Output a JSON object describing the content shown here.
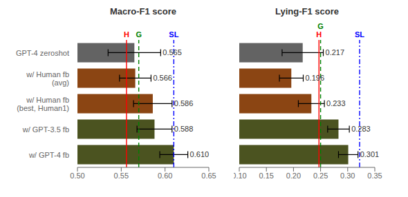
{
  "chart_data": [
    {
      "type": "bar",
      "orientation": "horizontal",
      "title": "Macro-F1 score",
      "categories": [
        "GPT-4 zeroshot",
        "w/ Human fb\n(avg)",
        "w/ Human fb\n(best, Human1)",
        "w/ GPT-3.5 fb",
        "w/ GPT-4 fb"
      ],
      "values": [
        0.565,
        0.566,
        0.586,
        0.588,
        0.61
      ],
      "errors": [
        0.03,
        0.018,
        0.022,
        0.02,
        0.016
      ],
      "value_labels": [
        "0.565",
        "0.566",
        "0.586",
        "0.588",
        "0.610"
      ],
      "data_labels": true,
      "colors": [
        "#636363",
        "#8B4513",
        "#8B4513",
        "#4B5320",
        "#4B5320"
      ],
      "annotations": [
        {
          "type": "vline",
          "x": 0.556,
          "label": "H",
          "color": "red",
          "line_style": "solid"
        },
        {
          "type": "vline",
          "x": 0.57,
          "label": "G",
          "color": "green",
          "line_style": "dashed"
        },
        {
          "type": "vline",
          "x": 0.61,
          "label": "SL",
          "color": "blue",
          "line_style": "dashdot"
        }
      ],
      "xlim": [
        0.5,
        0.65
      ],
      "xticks": [
        {
          "value": 0.5,
          "label": "0.50"
        },
        0.55,
        {
          "value": 0.6,
          "label": "0.60"
        },
        0.65
      ],
      "grid": false
    },
    {
      "type": "bar",
      "orientation": "horizontal",
      "title": "Lying-F1 score",
      "categories": [
        "GPT-4 zeroshot",
        "w/ Human fb\n(avg)",
        "w/ Human fb\n(best, Human1)",
        "w/ GPT-3.5 fb",
        "w/ GPT-4 fb"
      ],
      "values": [
        0.217,
        0.196,
        0.233,
        0.283,
        0.301
      ],
      "errors": [
        0.038,
        0.022,
        0.024,
        0.02,
        0.018
      ],
      "value_labels": [
        "0.217",
        "0.196",
        "0.233",
        "0.283",
        "0.301"
      ],
      "data_labels": true,
      "colors": [
        "#636363",
        "#8B4513",
        "#8B4513",
        "#4B5320",
        "#4B5320"
      ],
      "annotations": [
        {
          "type": "vline",
          "x": 0.247,
          "label": "H",
          "color": "red",
          "line_style": "solid"
        },
        {
          "type": "vline",
          "x": 0.25,
          "label": "G",
          "color": "green",
          "line_style": "dashed"
        },
        {
          "type": "vline",
          "x": 0.322,
          "label": "SL",
          "color": "blue",
          "line_style": "dashdot"
        }
      ],
      "xlim": [
        0.1,
        0.35
      ],
      "xticks": [
        {
          "value": 0.1,
          "label": "0.10"
        },
        0.15,
        {
          "value": 0.2,
          "label": "0.20"
        },
        0.25,
        {
          "value": 0.3,
          "label": "0.30"
        },
        0.35
      ],
      "grid": false,
      "tick_labels": "x"
    }
  ]
}
